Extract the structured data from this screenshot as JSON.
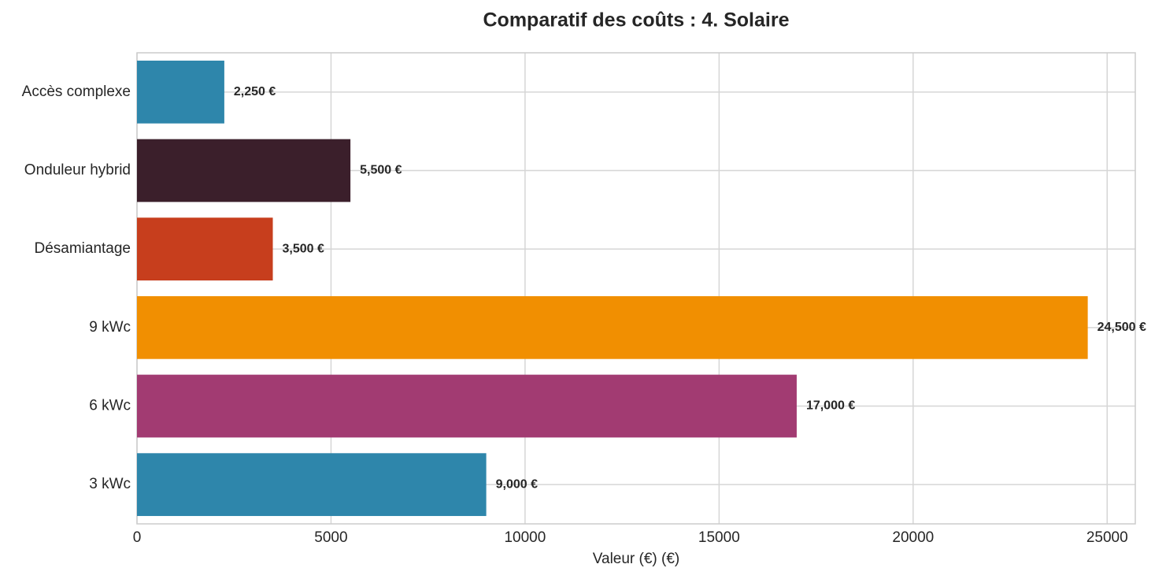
{
  "chart_data": {
    "type": "barh",
    "title": "Comparatif des coûts : 4. Solaire",
    "xlabel": "Valeur (€) (€)",
    "categories": [
      "3 kWc",
      "6 kWc",
      "9 kWc",
      "Désamiantage",
      "Onduleur hybrid",
      "Accès complexe"
    ],
    "values": [
      9000,
      17000,
      24500,
      3500,
      5500,
      2250
    ],
    "value_labels": [
      "9,000 €",
      "17,000 €",
      "24,500 €",
      "3,500 €",
      "5,500 €",
      "2,250 €"
    ],
    "colors": [
      "#2e86ab",
      "#a23b72",
      "#f18f01",
      "#c73e1d",
      "#3b1f2b",
      "#2e86ab"
    ],
    "xlim": [
      0,
      25725
    ],
    "xticks": [
      0,
      5000,
      10000,
      15000,
      20000,
      25000
    ],
    "grid": true
  }
}
